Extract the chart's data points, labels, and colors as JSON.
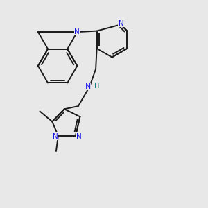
{
  "bg_color": "#e8e8e8",
  "bond_color": "#1a1a1a",
  "N_color": "#1414e6",
  "NH_color": "#008080",
  "lw": 1.4,
  "figsize": [
    3.0,
    3.0
  ],
  "dpi": 100,
  "xlim": [
    0,
    10
  ],
  "ylim": [
    0,
    10
  ]
}
